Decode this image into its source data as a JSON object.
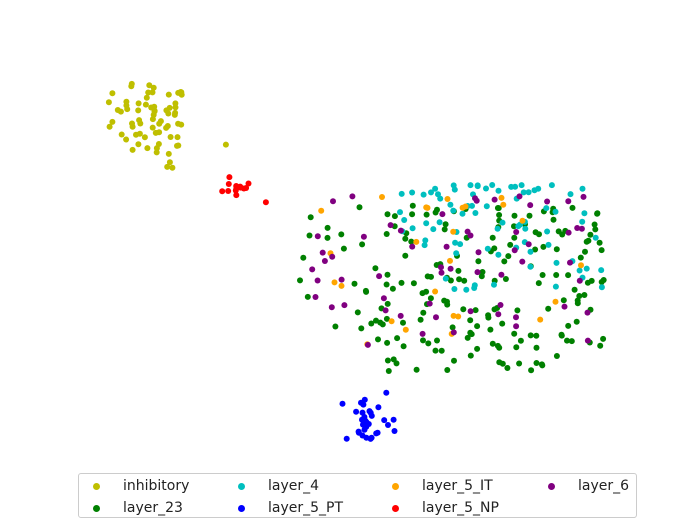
{
  "chart_data": {
    "type": "scatter",
    "title": "",
    "xlabel": "",
    "ylabel": "",
    "axes_visible": false,
    "grid": false,
    "legend_placement": "bottom",
    "legend_columns": 4,
    "xlim": [
      0,
      100
    ],
    "ylim": [
      0,
      100
    ],
    "series": [
      {
        "name": "inhibitory",
        "color": "#bfbf00",
        "points": []
      },
      {
        "name": "layer_23",
        "color": "#008000",
        "points": []
      },
      {
        "name": "layer_4",
        "color": "#00bfbf",
        "points": []
      },
      {
        "name": "layer_5_PT",
        "color": "#0000ff",
        "points": []
      },
      {
        "name": "layer_5_IT",
        "color": "#ffa500",
        "points": []
      },
      {
        "name": "layer_5_NP",
        "color": "#ff0000",
        "points": []
      },
      {
        "name": "layer_6",
        "color": "#800080",
        "points": []
      }
    ]
  }
}
